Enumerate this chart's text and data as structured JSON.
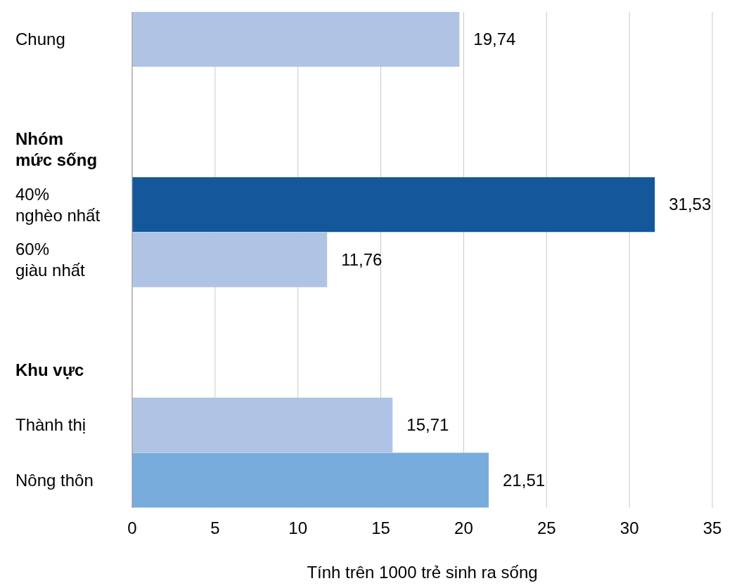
{
  "chart_data": {
    "type": "bar",
    "orientation": "horizontal",
    "xlabel": "Tính trên 1000 trẻ sinh ra sống",
    "categories": [
      "Chung",
      null,
      "Nhóm mức sống",
      "40% nghèo nhất",
      "60% giàu nhất",
      null,
      "Khu vực",
      "Thành thị",
      "Nông thôn"
    ],
    "values": [
      19.74,
      null,
      null,
      31.53,
      11.76,
      null,
      null,
      15.71,
      21.51
    ],
    "colors": [
      "#afc4e5",
      null,
      null,
      "#14579a",
      "#afc4e5",
      null,
      null,
      "#afc4e5",
      "#77acdc"
    ],
    "value_labels": [
      "19,74",
      null,
      null,
      "31,53",
      "11,76",
      null,
      null,
      "15,71",
      "21,51"
    ],
    "xlim": [
      0,
      35
    ],
    "xticks": [
      0,
      5,
      10,
      15,
      20,
      25,
      30,
      35
    ],
    "grid": "x"
  }
}
